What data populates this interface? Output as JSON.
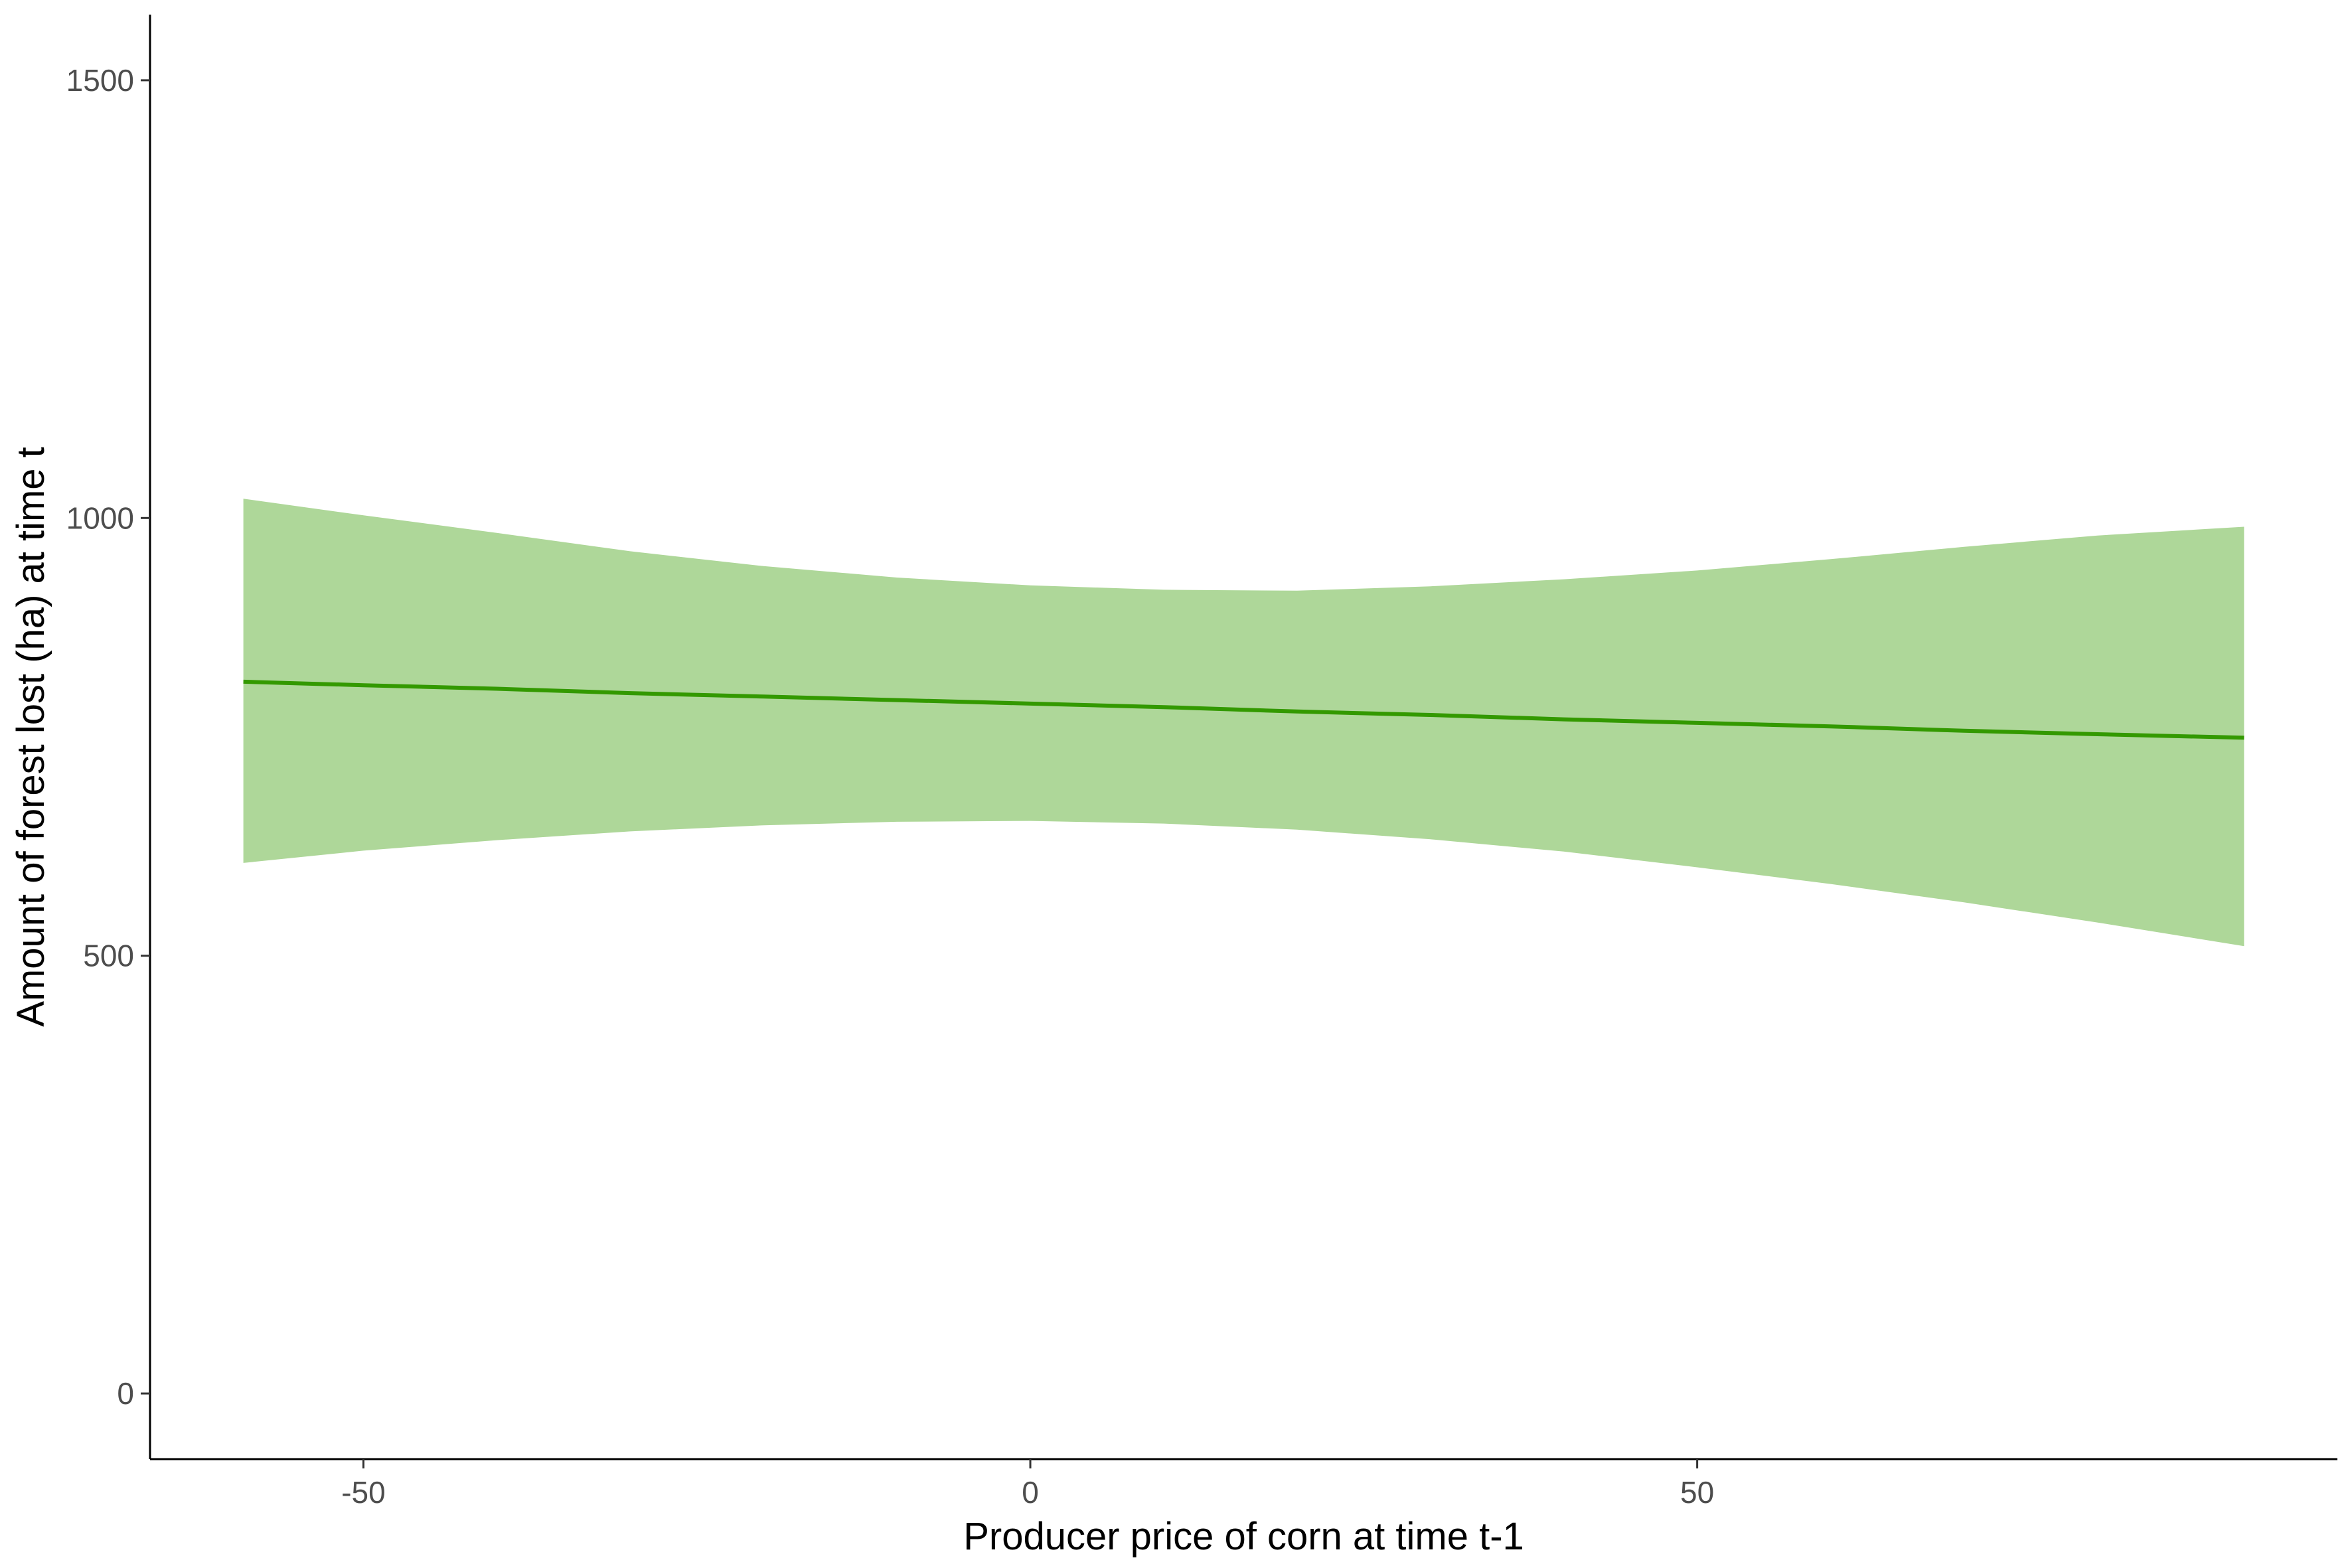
{
  "chart_data": {
    "type": "line",
    "title": "",
    "xlabel": "Producer price of corn at time t-1",
    "ylabel": "Amount of forest lost (ha) at time t",
    "xlim": [
      -66,
      98
    ],
    "ylim": [
      -75,
      1575
    ],
    "x_ticks": [
      -50,
      0,
      50
    ],
    "y_ticks": [
      0,
      500,
      1000,
      1500
    ],
    "x_tick_labels": [
      "-50",
      "0",
      "50"
    ],
    "y_tick_labels": [
      "0",
      "500",
      "1000",
      "1500"
    ],
    "grid": false,
    "legend": "none",
    "colors": {
      "line": "#339900",
      "ribbon": "#aed799",
      "axis": "#000000"
    },
    "series": [
      {
        "x": [
          -59,
          -50,
          -40,
          -30,
          -20,
          -10,
          0,
          10,
          20,
          30,
          40,
          50,
          60,
          70,
          80,
          91
        ],
        "values": [
          813,
          809,
          805,
          800,
          796,
          792,
          788,
          784,
          779,
          775,
          770,
          766,
          762,
          757,
          753,
          749
        ],
        "lower": [
          606,
          620,
          632,
          642,
          649,
          653,
          654,
          651,
          644,
          633,
          619,
          601,
          582,
          561,
          538,
          511
        ],
        "upper": [
          1022,
          1003,
          983,
          962,
          945,
          932,
          923,
          918,
          917,
          922,
          930,
          940,
          953,
          967,
          980,
          990
        ]
      }
    ]
  }
}
